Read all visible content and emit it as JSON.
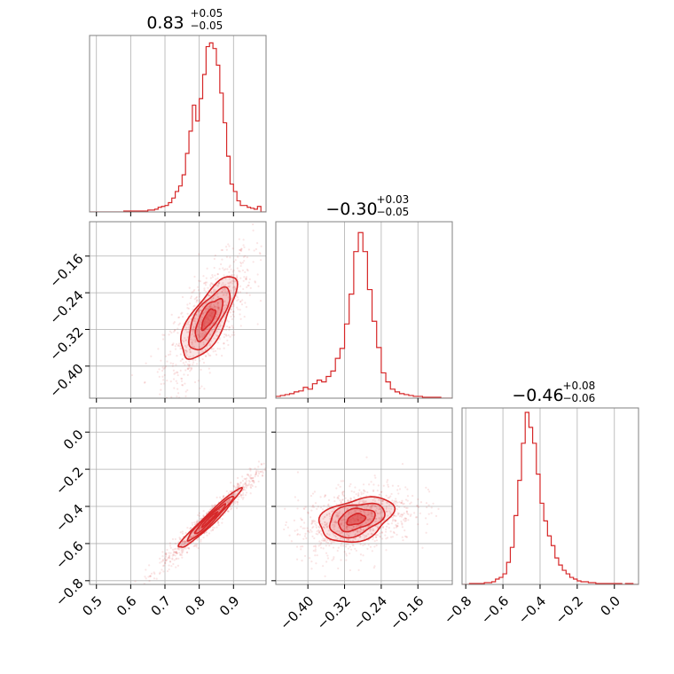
{
  "chart_data": {
    "type": "corner",
    "color": "#d62728",
    "grid": true,
    "parameters": [
      {
        "title": "0.83",
        "plus": "+0.05",
        "minus": "−0.05",
        "range": [
          0.48,
          0.995
        ],
        "ticks": [
          0.5,
          0.6,
          0.7,
          0.8,
          0.9
        ],
        "tick_labels": [
          "0.5",
          "0.6",
          "0.7",
          "0.8",
          "0.9"
        ]
      },
      {
        "title": "−0.30",
        "plus": "+0.03",
        "minus": "−0.05",
        "range": [
          -0.47,
          -0.085
        ],
        "ticks": [
          -0.4,
          -0.32,
          -0.24,
          -0.16
        ],
        "tick_labels": [
          "−0.40",
          "−0.32",
          "−0.24",
          "−0.16"
        ]
      },
      {
        "title": "−0.46",
        "plus": "+0.08",
        "minus": "−0.06",
        "range": [
          -0.82,
          0.13
        ],
        "ticks": [
          -0.8,
          -0.6,
          -0.4,
          -0.2,
          0.0
        ],
        "tick_labels": [
          "−0.8",
          "−0.6",
          "−0.4",
          "−0.2",
          "0.0"
        ]
      }
    ],
    "panels": [
      {
        "row": 0,
        "col": 0,
        "kind": "histogram",
        "param": 0,
        "x": [
          0.48,
          0.49,
          0.5,
          0.51,
          0.52,
          0.53,
          0.54,
          0.55,
          0.56,
          0.57,
          0.58,
          0.59,
          0.6,
          0.61,
          0.62,
          0.63,
          0.64,
          0.65,
          0.66,
          0.67,
          0.68,
          0.69,
          0.7,
          0.71,
          0.72,
          0.73,
          0.74,
          0.75,
          0.76,
          0.77,
          0.78,
          0.79,
          0.8,
          0.81,
          0.82,
          0.83,
          0.84,
          0.85,
          0.86,
          0.87,
          0.88,
          0.89,
          0.9,
          0.91,
          0.92,
          0.93,
          0.94,
          0.95,
          0.96,
          0.97,
          0.98,
          0.99
        ],
        "counts": [
          0,
          0,
          0,
          0,
          0,
          0,
          0,
          0,
          0,
          0,
          1,
          1,
          1,
          1,
          1,
          1,
          1,
          2,
          2,
          3,
          5,
          6,
          7,
          10,
          15,
          22,
          28,
          40,
          63,
          87,
          115,
          98,
          122,
          148,
          178,
          182,
          176,
          158,
          128,
          96,
          60,
          30,
          22,
          12,
          7,
          7,
          5,
          4,
          3,
          6,
          0,
          0
        ],
        "ymax": 190
      },
      {
        "row": 1,
        "col": 0,
        "kind": "scatter2d",
        "x_param": 0,
        "y_param": 1,
        "center": [
          0.827,
          -0.297
        ],
        "sigma": [
          0.04,
          0.045
        ],
        "rho": 0.72,
        "fill": true
      },
      {
        "row": 1,
        "col": 1,
        "kind": "histogram",
        "param": 1,
        "x": [
          -0.47,
          -0.46,
          -0.45,
          -0.44,
          -0.43,
          -0.42,
          -0.41,
          -0.4,
          -0.39,
          -0.38,
          -0.37,
          -0.36,
          -0.35,
          -0.34,
          -0.33,
          -0.32,
          -0.31,
          -0.3,
          -0.29,
          -0.28,
          -0.27,
          -0.26,
          -0.25,
          -0.24,
          -0.23,
          -0.22,
          -0.21,
          -0.2,
          -0.19,
          -0.18,
          -0.17,
          -0.16,
          -0.15,
          -0.14,
          -0.13,
          -0.12,
          -0.11,
          -0.1,
          -0.09
        ],
        "counts": [
          2,
          3,
          4,
          5,
          7,
          8,
          12,
          10,
          16,
          20,
          18,
          24,
          30,
          44,
          55,
          82,
          115,
          162,
          183,
          162,
          120,
          85,
          56,
          28,
          18,
          10,
          7,
          5,
          4,
          3,
          2,
          2,
          1,
          1,
          1,
          1,
          0,
          0,
          0
        ],
        "ymax": 195
      },
      {
        "row": 2,
        "col": 0,
        "kind": "scatter2d",
        "x_param": 0,
        "y_param": 2,
        "center": [
          0.83,
          -0.47
        ],
        "sigma": [
          0.045,
          0.08
        ],
        "rho": 0.97,
        "fill": true
      },
      {
        "row": 2,
        "col": 1,
        "kind": "scatter2d",
        "x_param": 1,
        "y_param": 2,
        "center": [
          -0.295,
          -0.47
        ],
        "sigma": [
          0.04,
          0.06
        ],
        "rho": 0.35,
        "fill": true
      },
      {
        "row": 2,
        "col": 2,
        "kind": "histogram",
        "param": 2,
        "x": [
          -0.82,
          -0.8,
          -0.78,
          -0.76,
          -0.74,
          -0.72,
          -0.7,
          -0.68,
          -0.66,
          -0.64,
          -0.62,
          -0.6,
          -0.58,
          -0.56,
          -0.54,
          -0.52,
          -0.5,
          -0.48,
          -0.46,
          -0.44,
          -0.42,
          -0.4,
          -0.38,
          -0.36,
          -0.34,
          -0.32,
          -0.3,
          -0.28,
          -0.26,
          -0.24,
          -0.22,
          -0.2,
          -0.18,
          -0.16,
          -0.14,
          -0.12,
          -0.1,
          -0.08,
          -0.06,
          -0.04,
          -0.02,
          0.0,
          0.02,
          0.04,
          0.06,
          0.08,
          0.1,
          0.12
        ],
        "counts": [
          0,
          0,
          1,
          1,
          1,
          1,
          2,
          2,
          3,
          6,
          8,
          12,
          25,
          42,
          78,
          118,
          160,
          195,
          178,
          160,
          125,
          92,
          72,
          55,
          44,
          30,
          22,
          16,
          12,
          8,
          6,
          4,
          3,
          3,
          2,
          2,
          1,
          1,
          1,
          1,
          1,
          1,
          1,
          0,
          1,
          1,
          0,
          0
        ],
        "ymax": 200
      }
    ]
  }
}
